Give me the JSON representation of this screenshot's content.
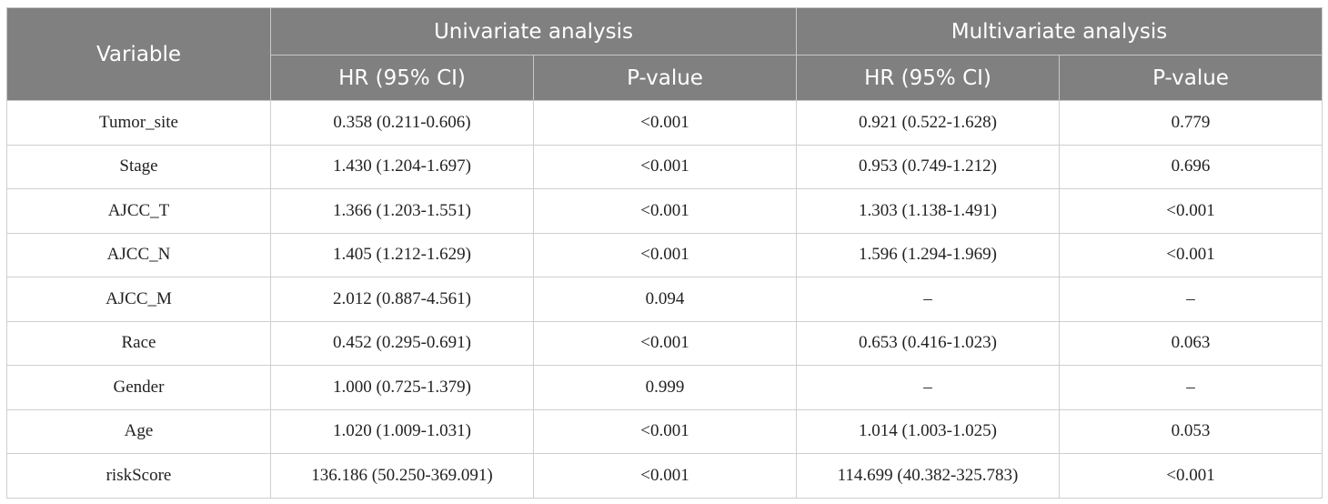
{
  "table": {
    "header": {
      "variable": "Variable",
      "groups": [
        {
          "label": "Univariate analysis",
          "subcolumns": [
            "HR (95% CI)",
            "P-value"
          ]
        },
        {
          "label": "Multivariate analysis",
          "subcolumns": [
            "HR (95% CI)",
            "P-value"
          ]
        }
      ]
    },
    "rows": [
      [
        "Tumor_site",
        "0.358 (0.211-0.606)",
        "<0.001",
        "0.921 (0.522-1.628)",
        "0.779"
      ],
      [
        "Stage",
        "1.430 (1.204-1.697)",
        "<0.001",
        "0.953 (0.749-1.212)",
        "0.696"
      ],
      [
        "AJCC_T",
        "1.366 (1.203-1.551)",
        "<0.001",
        "1.303 (1.138-1.491)",
        "<0.001"
      ],
      [
        "AJCC_N",
        "1.405 (1.212-1.629)",
        "<0.001",
        "1.596 (1.294-1.969)",
        "<0.001"
      ],
      [
        "AJCC_M",
        "2.012 (0.887-4.561)",
        "0.094",
        "–",
        "–"
      ],
      [
        "Race",
        "0.452 (0.295-0.691)",
        "<0.001",
        "0.653 (0.416-1.023)",
        "0.063"
      ],
      [
        "Gender",
        "1.000 (0.725-1.379)",
        "0.999",
        "–",
        "–"
      ],
      [
        "Age",
        "1.020 (1.009-1.031)",
        "<0.001",
        "1.014 (1.003-1.025)",
        "0.053"
      ],
      [
        "riskScore",
        "136.186 (50.250-369.091)",
        "<0.001",
        "114.699 (40.382-325.783)",
        "<0.001"
      ]
    ]
  }
}
